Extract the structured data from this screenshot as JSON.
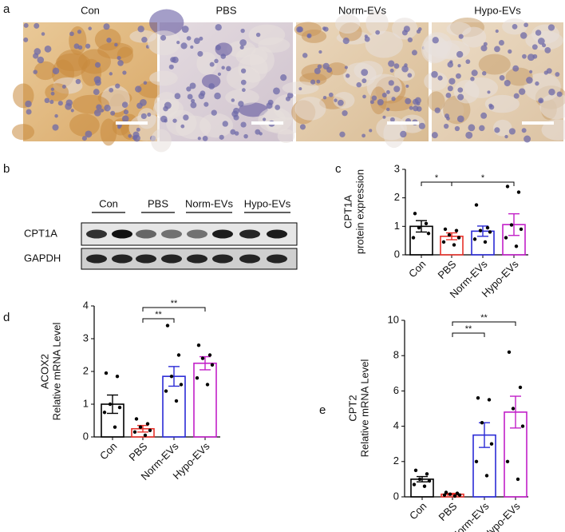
{
  "panel_a": {
    "letter": "a",
    "labels": [
      "Con",
      "PBS",
      "Norm-EVs",
      "Hypo-EVs"
    ]
  },
  "panel_b": {
    "letter": "b",
    "groups": [
      "Con",
      "PBS",
      "Norm-EVs",
      "Hypo-EVs"
    ],
    "rows": [
      "CPT1A",
      "GAPDH"
    ]
  },
  "chart_data": [
    {
      "type": "bar",
      "letter": "c",
      "y_label": [
        "CPT1A",
        "protein expression"
      ],
      "categories": [
        "Con",
        "PBS",
        "Norm-EVs",
        "Hypo-EVs"
      ],
      "values": [
        1.0,
        0.65,
        0.83,
        1.06
      ],
      "errors": [
        0.2,
        0.12,
        0.18,
        0.38
      ],
      "colors": [
        "#000000",
        "#e8312a",
        "#2b2bd6",
        "#c21fc8"
      ],
      "points": [
        [
          1.45,
          1.1,
          0.95,
          0.75,
          0.6
        ],
        [
          0.9,
          0.85,
          0.7,
          0.6,
          0.45,
          0.35
        ],
        [
          1.75,
          0.95,
          0.85,
          0.8,
          0.55,
          0.45
        ],
        [
          2.4,
          2.2,
          1.05,
          0.9,
          0.6,
          0.3
        ]
      ],
      "significance": [
        {
          "from": 0,
          "to": 1,
          "label": "*"
        },
        {
          "from": 1,
          "to": 3,
          "label": "*"
        }
      ],
      "ylim": [
        0,
        3
      ],
      "yticks": [
        0,
        1,
        2,
        3
      ]
    },
    {
      "type": "bar",
      "letter": "d",
      "y_label": [
        "ACOX2",
        "Relative mRNA Level"
      ],
      "categories": [
        "Con",
        "PBS",
        "Norm-EVs",
        "Hypo-EVs"
      ],
      "values": [
        1.0,
        0.25,
        1.85,
        2.25
      ],
      "errors": [
        0.28,
        0.1,
        0.3,
        0.2
      ],
      "colors": [
        "#000000",
        "#e8312a",
        "#2b2bd6",
        "#c21fc8"
      ],
      "points": [
        [
          1.95,
          1.85,
          1.0,
          0.9,
          0.75,
          0.3
        ],
        [
          0.55,
          0.4,
          0.3,
          0.2,
          0.15,
          0.05
        ],
        [
          3.4,
          2.5,
          1.85,
          1.6,
          1.4,
          1.1
        ],
        [
          2.8,
          2.5,
          2.4,
          2.2,
          1.8,
          1.6
        ]
      ],
      "significance": [
        {
          "from": 1,
          "to": 2,
          "label": "**"
        },
        {
          "from": 1,
          "to": 3,
          "label": "**"
        }
      ],
      "ylim": [
        0,
        4
      ],
      "yticks": [
        0,
        1,
        2,
        3,
        4
      ]
    },
    {
      "type": "bar",
      "letter": "e",
      "y_label": [
        "CPT2",
        "Relative mRNA Level"
      ],
      "categories": [
        "Con",
        "PBS",
        "Norm-EVs",
        "Hypo-EVs"
      ],
      "values": [
        1.0,
        0.15,
        3.5,
        4.8
      ],
      "errors": [
        0.15,
        0.05,
        0.7,
        0.9
      ],
      "colors": [
        "#000000",
        "#e8312a",
        "#2b2bd6",
        "#c21fc8"
      ],
      "points": [
        [
          1.5,
          1.3,
          1.0,
          0.9,
          0.7,
          0.6
        ],
        [
          0.25,
          0.2,
          0.15,
          0.1,
          0.1,
          0.05
        ],
        [
          5.6,
          5.5,
          4.2,
          3.0,
          2.0,
          1.2
        ],
        [
          8.2,
          6.2,
          5.0,
          4.0,
          2.0,
          1.0
        ]
      ],
      "significance": [
        {
          "from": 1,
          "to": 2,
          "label": "**"
        },
        {
          "from": 1,
          "to": 3,
          "label": "**"
        }
      ],
      "ylim": [
        0,
        10
      ],
      "yticks": [
        0,
        2,
        4,
        6,
        8,
        10
      ]
    }
  ]
}
